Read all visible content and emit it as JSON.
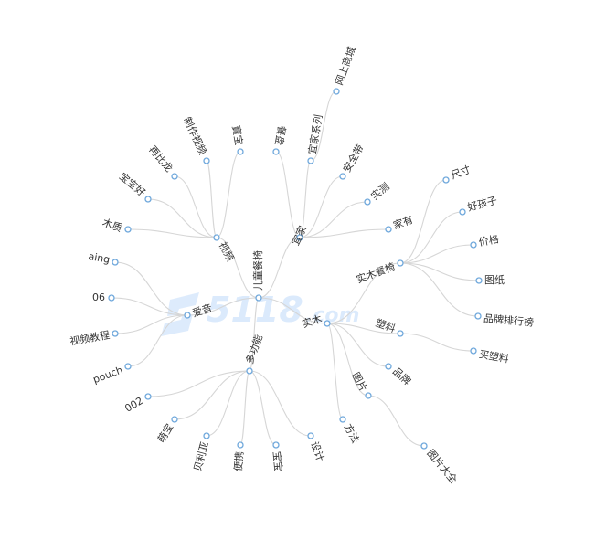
{
  "watermark": {
    "text": "5118",
    "suffix": ".com"
  },
  "tree": {
    "root": "儿童餐椅",
    "branches": [
      {
        "label": "视频",
        "children": [
          "木质",
          "宝宝好",
          "再比龙",
          "制作视频",
          "寶宝"
        ]
      },
      {
        "label": "宜家",
        "children": [
          "餐盘",
          "宜家系列",
          "安全带",
          "实测",
          "家有"
        ]
      },
      {
        "label": "实木",
        "children": [
          "实木餐椅",
          "塑料",
          "品牌",
          "图片",
          "方法"
        ]
      },
      {
        "label": "多功能",
        "children": [
          "002",
          "萌宝",
          "贝利亚",
          "便携",
          "宝宝",
          "设计"
        ]
      },
      {
        "label": "爱音",
        "children": [
          "aing",
          "06",
          "视频教程",
          "pouch"
        ]
      }
    ],
    "grandchildren": {
      "宜家系列": [
        "网上商城"
      ],
      "实木餐椅": [
        "尺寸",
        "好孩子",
        "价格",
        "图纸",
        "品牌排行榜"
      ],
      "塑料": [
        "买塑料"
      ],
      "图片": [
        "图片大全"
      ]
    }
  }
}
